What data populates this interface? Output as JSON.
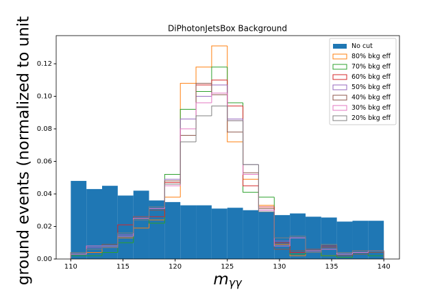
{
  "chart_data": {
    "type": "histogram",
    "title": "DiPhotonJetsBox Background",
    "x_label": "m",
    "x_label_subscript": "γγ",
    "y_label": "ground events (normalized to unit",
    "bins": [
      110,
      111.5,
      113,
      114.5,
      116,
      117.5,
      119,
      120.5,
      122,
      123.5,
      125,
      126.5,
      128,
      129.5,
      131,
      132.5,
      134,
      135.5,
      137,
      138.5,
      140
    ],
    "xlim": [
      108.6,
      141.5
    ],
    "xticks": [
      110,
      115,
      120,
      125,
      130,
      135,
      140
    ],
    "ylim": [
      0,
      0.1373
    ],
    "yticks": [
      {
        "value": 0,
        "label": "0.00"
      },
      {
        "value": 0.02,
        "label": "0.02"
      },
      {
        "value": 0.04,
        "label": "0.04"
      },
      {
        "value": 0.06,
        "label": "0.06"
      },
      {
        "value": 0.08,
        "label": "0.08"
      },
      {
        "value": 0.1,
        "label": "0.10"
      },
      {
        "value": 0.12,
        "label": "0.12"
      }
    ],
    "legend": "upper right",
    "series": [
      {
        "name": "No cut",
        "color": "#1f77b4",
        "histtype": "bar",
        "values": [
          0.048,
          0.043,
          0.045,
          0.039,
          0.042,
          0.036,
          0.035,
          0.033,
          0.033,
          0.031,
          0.0315,
          0.03,
          0.029,
          0.027,
          0.028,
          0.026,
          0.0255,
          0.023,
          0.0235,
          0.0235
        ]
      },
      {
        "name": "80% bkg eff",
        "color": "#ff7f0e",
        "histtype": "step",
        "values": [
          0.003,
          0.004,
          0.007,
          0.013,
          0.019,
          0.024,
          0.038,
          0.108,
          0.118,
          0.131,
          0.072,
          0.049,
          0.033,
          0.009,
          0.002,
          0.005,
          0.002,
          0.003,
          0.004,
          0.004
        ]
      },
      {
        "name": "70% bkg eff",
        "color": "#2ca02c",
        "histtype": "step",
        "values": [
          0.002,
          0.002,
          0.004,
          0.01,
          0.025,
          0.022,
          0.052,
          0.092,
          0.103,
          0.118,
          0.096,
          0.041,
          0.038,
          0.008,
          0.003,
          0.004,
          0.002,
          0.001,
          0.003,
          0.002
        ]
      },
      {
        "name": "60% bkg eff",
        "color": "#d62728",
        "histtype": "step",
        "values": [
          0.004,
          0.008,
          0.008,
          0.021,
          0.025,
          0.026,
          0.047,
          0.08,
          0.107,
          0.11,
          0.094,
          0.045,
          0.032,
          0.01,
          0.004,
          0.005,
          0.008,
          0.004,
          0.005,
          0.005
        ]
      },
      {
        "name": "50% bkg eff",
        "color": "#9467bd",
        "histtype": "step",
        "values": [
          0.004,
          0.007,
          0.007,
          0.015,
          0.026,
          0.031,
          0.049,
          0.086,
          0.1,
          0.107,
          0.086,
          0.058,
          0.03,
          0.011,
          0.013,
          0.006,
          0.007,
          0.003,
          0.004,
          0.004
        ]
      },
      {
        "name": "40% bkg eff",
        "color": "#8c564b",
        "histtype": "step",
        "values": [
          0.004,
          0.008,
          0.009,
          0.016,
          0.026,
          0.03,
          0.048,
          0.076,
          0.108,
          0.101,
          0.078,
          0.053,
          0.031,
          0.006,
          0.005,
          0.006,
          0.007,
          0.002,
          0.003,
          0.004
        ]
      },
      {
        "name": "30% bkg eff",
        "color": "#e377c2",
        "histtype": "step",
        "values": [
          0.003,
          0.008,
          0.008,
          0.014,
          0.025,
          0.031,
          0.045,
          0.08,
          0.096,
          0.102,
          0.085,
          0.052,
          0.03,
          0.008,
          0.013,
          0.005,
          0.006,
          0.003,
          0.004,
          0.005
        ]
      },
      {
        "name": "20% bkg eff",
        "color": "#7f7f7f",
        "histtype": "step",
        "values": [
          0.004,
          0.006,
          0.007,
          0.016,
          0.024,
          0.032,
          0.046,
          0.072,
          0.088,
          0.094,
          0.085,
          0.058,
          0.029,
          0.013,
          0.014,
          0.004,
          0.009,
          0.004,
          0.005,
          0.005
        ]
      }
    ]
  }
}
